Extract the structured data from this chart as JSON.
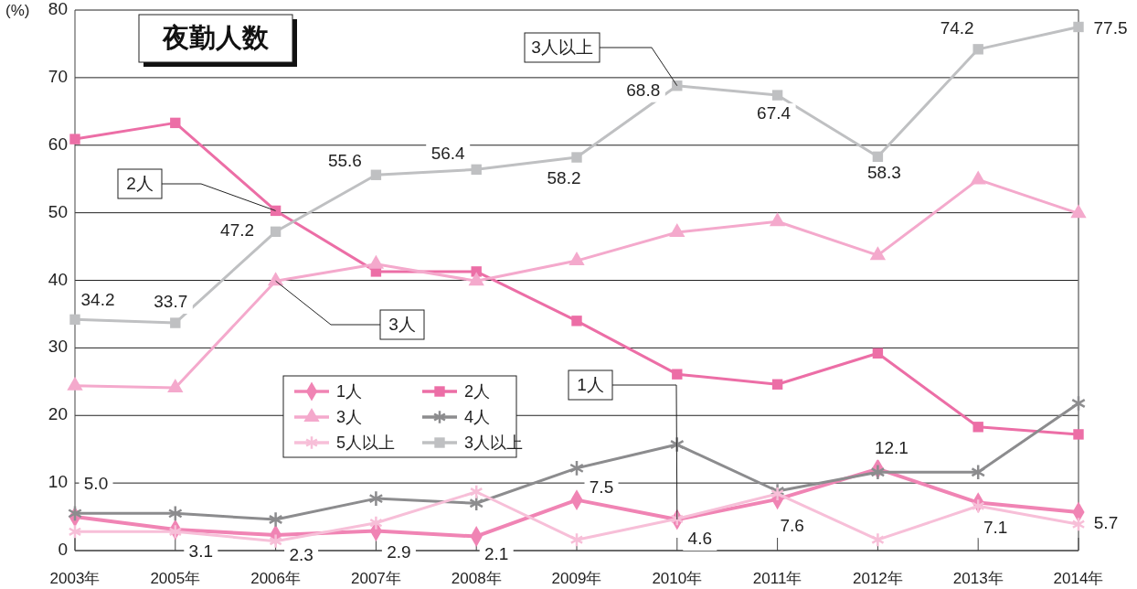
{
  "chart_data": {
    "type": "line",
    "title": "夜勤人数",
    "ylabel": "(%)",
    "categories": [
      "2003年",
      "2005年",
      "2006年",
      "2007年",
      "2008年",
      "2009年",
      "2010年",
      "2011年",
      "2012年",
      "2013年",
      "2014年"
    ],
    "ylim": [
      0,
      80
    ],
    "yticks": [
      0,
      10,
      20,
      30,
      40,
      50,
      60,
      70,
      80
    ],
    "grid": "y",
    "legend": "bottom left",
    "series": [
      {
        "name": "1人",
        "color": "#f084b4",
        "marker": "diamond",
        "values": [
          5.0,
          3.1,
          2.3,
          2.9,
          2.1,
          7.5,
          4.6,
          7.6,
          12.1,
          7.1,
          5.7
        ],
        "value_labels": [
          "5.0",
          "3.1",
          "2.3",
          "2.9",
          "2.1",
          "7.5",
          "4.6",
          "7.6",
          "12.1",
          "7.1",
          "5.7"
        ]
      },
      {
        "name": "2人",
        "color": "#ec6ea6",
        "marker": "square",
        "values": [
          60.9,
          63.3,
          50.3,
          41.3,
          41.3,
          34.0,
          26.1,
          24.6,
          29.2,
          18.3,
          17.2
        ]
      },
      {
        "name": "3人",
        "color": "#f4a9cc",
        "marker": "triangle",
        "values": [
          24.4,
          24.1,
          39.9,
          42.4,
          39.9,
          42.9,
          47.1,
          48.7,
          43.7,
          54.9,
          49.9
        ]
      },
      {
        "name": "4人",
        "color": "#8c8c8e",
        "marker": "cross",
        "values": [
          5.5,
          5.5,
          4.6,
          7.7,
          7.0,
          12.2,
          15.7,
          8.8,
          11.6,
          11.6,
          21.8
        ]
      },
      {
        "name": "5人以上",
        "color": "#f7bfd8",
        "marker": "cross",
        "values": [
          2.8,
          2.8,
          1.4,
          4.1,
          8.7,
          1.6,
          4.7,
          8.4,
          1.6,
          6.6,
          3.9
        ]
      },
      {
        "name": "3人以上",
        "color": "#bfc0c2",
        "marker": "square",
        "values": [
          34.2,
          33.7,
          47.2,
          55.6,
          56.4,
          58.2,
          68.8,
          67.4,
          58.3,
          74.2,
          77.5
        ],
        "value_labels": [
          "34.2",
          "33.7",
          "47.2",
          "55.6",
          "56.4",
          "58.2",
          "68.8",
          "67.4",
          "58.3",
          "74.2",
          "77.5"
        ]
      }
    ],
    "annotations": [
      {
        "text": "3人以上",
        "x": "2010年",
        "y": 68.8
      },
      {
        "text": "2人",
        "x": "2006年",
        "y": 50.3
      },
      {
        "text": "3人",
        "x": "2006年",
        "y": 39.9
      },
      {
        "text": "1人",
        "x": "2010年",
        "y": 4.6
      }
    ]
  }
}
